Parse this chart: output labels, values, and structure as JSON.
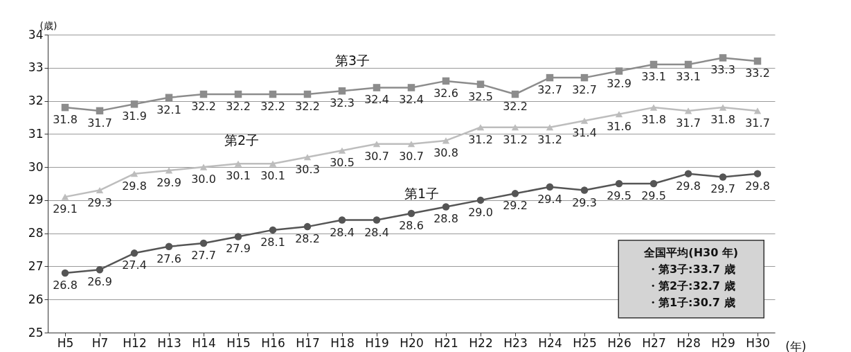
{
  "chart_data": {
    "type": "line",
    "ylabel": "(歳)",
    "xlabel": "(年)",
    "categories": [
      "H5",
      "H7",
      "H12",
      "H13",
      "H14",
      "H15",
      "H16",
      "H17",
      "H18",
      "H19",
      "H20",
      "H21",
      "H22",
      "H23",
      "H24",
      "H25",
      "H26",
      "H27",
      "H28",
      "H29",
      "H30"
    ],
    "series": [
      {
        "name": "第3子",
        "color": "#8c8c8c",
        "marker": "square",
        "values": [
          31.8,
          31.7,
          31.9,
          32.1,
          32.2,
          32.2,
          32.2,
          32.2,
          32.3,
          32.4,
          32.4,
          32.6,
          32.5,
          32.2,
          32.7,
          32.7,
          32.9,
          33.1,
          33.1,
          33.3,
          33.2
        ],
        "value_labels": [
          "31.8",
          "31.7",
          "31.9",
          "32.1",
          "32.2",
          "32.2",
          "32.2",
          "32.2",
          "32.3",
          "32.4",
          "32.4",
          "32.6",
          "32.5",
          "32.2",
          "32.7",
          "32.7",
          "32.9",
          "33.1",
          "33.1",
          "33.3",
          "33.2"
        ]
      },
      {
        "name": "第2子",
        "color": "#bdbdbd",
        "marker": "triangle",
        "values": [
          29.1,
          29.3,
          29.8,
          29.9,
          30.0,
          30.1,
          30.1,
          30.3,
          30.5,
          30.7,
          30.7,
          30.8,
          31.2,
          31.2,
          31.2,
          31.4,
          31.6,
          31.8,
          31.7,
          31.8,
          31.7
        ],
        "value_labels": [
          "29.1",
          "29.3",
          "29.8",
          "29.9",
          "30.0",
          "30.1",
          "30.1",
          "30.3",
          "30.5",
          "30.7",
          "30.7",
          "30.8",
          "31.2",
          "31.2",
          "31.2",
          "31.4",
          "31.6",
          "31.8",
          "31.7",
          "31.8",
          "31.7"
        ]
      },
      {
        "name": "第1子",
        "color": "#555555",
        "marker": "circle",
        "values": [
          26.8,
          26.9,
          27.4,
          27.6,
          27.7,
          27.9,
          28.1,
          28.2,
          28.4,
          28.4,
          28.6,
          28.8,
          29.0,
          29.2,
          29.4,
          29.3,
          29.5,
          29.5,
          29.8,
          29.7,
          29.8
        ],
        "value_labels": [
          "26.8",
          "26.9",
          "27.4",
          "27.6",
          "27.7",
          "27.9",
          "28.1",
          "28.2",
          "28.4",
          "28.4",
          "28.6",
          "28.8",
          "29.0",
          "29.2",
          "29.4",
          "29.3",
          "29.5",
          "29.5",
          "29.8",
          "29.7",
          "29.8"
        ]
      }
    ],
    "ylim": [
      25,
      34
    ],
    "yticks": [
      25,
      26,
      27,
      28,
      29,
      30,
      31,
      32,
      33,
      34
    ],
    "grid": "y",
    "annotations": [
      "全国平均(H30 年)",
      "・第3子:33.7 歳",
      "・第2子:32.7 歳",
      "・第1子:30.7 歳"
    ]
  }
}
